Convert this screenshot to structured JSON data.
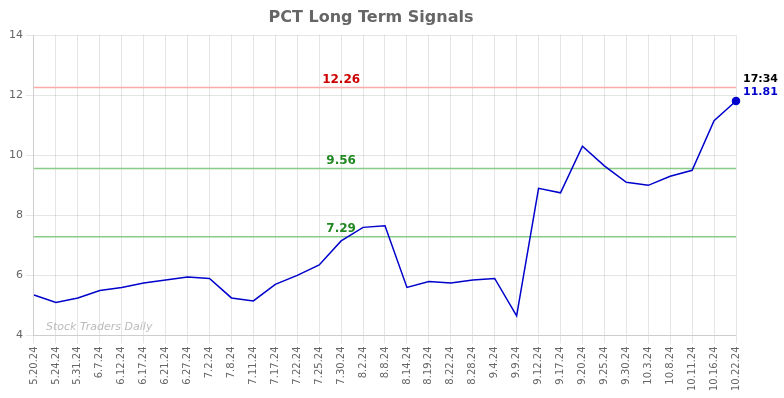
{
  "chart_data": {
    "type": "line",
    "title": "PCT Long Term Signals",
    "categories": [
      "5.20.24",
      "5.24.24",
      "5.31.24",
      "6.7.24",
      "6.12.24",
      "6.17.24",
      "6.21.24",
      "6.27.24",
      "7.2.24",
      "7.8.24",
      "7.11.24",
      "7.17.24",
      "7.22.24",
      "7.25.24",
      "7.30.24",
      "8.2.24",
      "8.8.24",
      "8.14.24",
      "8.19.24",
      "8.22.24",
      "8.28.24",
      "9.4.24",
      "9.9.24",
      "9.12.24",
      "9.17.24",
      "9.20.24",
      "9.25.24",
      "9.30.24",
      "10.3.24",
      "10.8.24",
      "10.11.24",
      "10.16.24",
      "10.22.24"
    ],
    "values": [
      5.35,
      5.1,
      5.25,
      5.5,
      5.6,
      5.75,
      5.85,
      5.95,
      5.9,
      5.25,
      5.15,
      5.7,
      6.0,
      6.35,
      7.15,
      7.6,
      7.65,
      5.6,
      5.8,
      5.75,
      5.85,
      5.9,
      4.65,
      8.9,
      8.75,
      10.3,
      9.65,
      9.1,
      9.0,
      9.3,
      9.5,
      11.15,
      11.81
    ],
    "color": "#0000cc",
    "ylim": [
      4,
      14
    ],
    "yticks": [
      4,
      6,
      8,
      10,
      12,
      14
    ],
    "grid": true,
    "hlines": [
      {
        "y": 12.26,
        "label": "12.26",
        "color": "#ffaaaa",
        "label_color": "#cc0000"
      },
      {
        "y": 9.56,
        "label": "9.56",
        "color": "#88cc88",
        "label_color": "#228822"
      },
      {
        "y": 7.29,
        "label": "7.29",
        "color": "#88cc88",
        "label_color": "#228822"
      }
    ],
    "annotations": [
      {
        "text": "17:34",
        "color": "#000000"
      },
      {
        "text": "11.81",
        "color": "#0000cc"
      }
    ],
    "watermark": {
      "text": "Stock Traders Daily",
      "color": "#bbbbbb"
    }
  }
}
